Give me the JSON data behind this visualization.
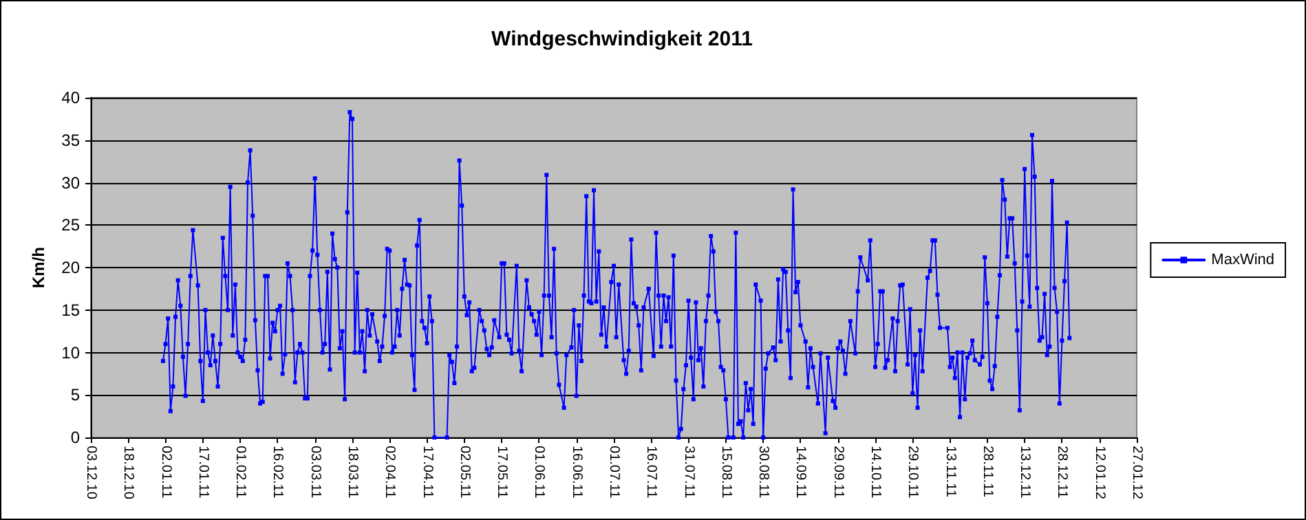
{
  "chart_data": {
    "type": "line",
    "title": "Windgeschwindigkeit 2011",
    "ylabel": "Km/h",
    "x": [
      "2011-01-01",
      "2011-01-02",
      "2011-01-03",
      "2011-01-04",
      "2011-01-05",
      "2011-01-06",
      "2011-01-07",
      "2011-01-08",
      "2011-01-09",
      "2011-01-10",
      "2011-01-11",
      "2011-01-12",
      "2011-01-13",
      "2011-01-15",
      "2011-01-16",
      "2011-01-17",
      "2011-01-18",
      "2011-01-19",
      "2011-01-20",
      "2011-01-21",
      "2011-01-22",
      "2011-01-23",
      "2011-01-24",
      "2011-01-25",
      "2011-01-26",
      "2011-01-27",
      "2011-01-28",
      "2011-01-29",
      "2011-01-30",
      "2011-01-31",
      "2011-02-01",
      "2011-02-02",
      "2011-02-03",
      "2011-02-04",
      "2011-02-05",
      "2011-02-06",
      "2011-02-07",
      "2011-02-08",
      "2011-02-09",
      "2011-02-10",
      "2011-02-11",
      "2011-02-12",
      "2011-02-13",
      "2011-02-14",
      "2011-02-15",
      "2011-02-16",
      "2011-02-17",
      "2011-02-18",
      "2011-02-19",
      "2011-02-20",
      "2011-02-21",
      "2011-02-22",
      "2011-02-23",
      "2011-02-24",
      "2011-02-25",
      "2011-02-26",
      "2011-02-27",
      "2011-02-28",
      "2011-03-01",
      "2011-03-02",
      "2011-03-03",
      "2011-03-04",
      "2011-03-05",
      "2011-03-06",
      "2011-03-07",
      "2011-03-08",
      "2011-03-09",
      "2011-03-10",
      "2011-03-11",
      "2011-03-12",
      "2011-03-13",
      "2011-03-14",
      "2011-03-15",
      "2011-03-16",
      "2011-03-17",
      "2011-03-18",
      "2011-03-19",
      "2011-03-20",
      "2011-03-21",
      "2011-03-22",
      "2011-03-23",
      "2011-03-24",
      "2011-03-25",
      "2011-03-26",
      "2011-03-28",
      "2011-03-29",
      "2011-03-30",
      "2011-03-31",
      "2011-04-01",
      "2011-04-02",
      "2011-04-03",
      "2011-04-04",
      "2011-04-05",
      "2011-04-06",
      "2011-04-07",
      "2011-04-08",
      "2011-04-09",
      "2011-04-10",
      "2011-04-11",
      "2011-04-12",
      "2011-04-13",
      "2011-04-14",
      "2011-04-15",
      "2011-04-16",
      "2011-04-17",
      "2011-04-18",
      "2011-04-19",
      "2011-04-20",
      "2011-04-25",
      "2011-04-26",
      "2011-04-27",
      "2011-04-28",
      "2011-04-29",
      "2011-04-30",
      "2011-05-01",
      "2011-05-02",
      "2011-05-03",
      "2011-05-04",
      "2011-05-05",
      "2011-05-06",
      "2011-05-08",
      "2011-05-09",
      "2011-05-10",
      "2011-05-11",
      "2011-05-12",
      "2011-05-13",
      "2011-05-14",
      "2011-05-16",
      "2011-05-17",
      "2011-05-18",
      "2011-05-19",
      "2011-05-20",
      "2011-05-21",
      "2011-05-23",
      "2011-05-24",
      "2011-05-25",
      "2011-05-27",
      "2011-05-28",
      "2011-05-29",
      "2011-05-30",
      "2011-05-31",
      "2011-06-01",
      "2011-06-02",
      "2011-06-03",
      "2011-06-04",
      "2011-06-05",
      "2011-06-06",
      "2011-06-07",
      "2011-06-08",
      "2011-06-09",
      "2011-06-11",
      "2011-06-12",
      "2011-06-14",
      "2011-06-15",
      "2011-06-16",
      "2011-06-17",
      "2011-06-18",
      "2011-06-19",
      "2011-06-20",
      "2011-06-21",
      "2011-06-22",
      "2011-06-23",
      "2011-06-24",
      "2011-06-25",
      "2011-06-26",
      "2011-06-27",
      "2011-06-28",
      "2011-06-30",
      "2011-07-01",
      "2011-07-02",
      "2011-07-03",
      "2011-07-05",
      "2011-07-06",
      "2011-07-07",
      "2011-07-08",
      "2011-07-09",
      "2011-07-10",
      "2011-07-11",
      "2011-07-12",
      "2011-07-13",
      "2011-07-15",
      "2011-07-17",
      "2011-07-18",
      "2011-07-19",
      "2011-07-20",
      "2011-07-21",
      "2011-07-22",
      "2011-07-23",
      "2011-07-24",
      "2011-07-25",
      "2011-07-26",
      "2011-07-27",
      "2011-07-28",
      "2011-07-29",
      "2011-07-30",
      "2011-07-31",
      "2011-08-01",
      "2011-08-02",
      "2011-08-03",
      "2011-08-04",
      "2011-08-05",
      "2011-08-06",
      "2011-08-07",
      "2011-08-08",
      "2011-08-09",
      "2011-08-10",
      "2011-08-11",
      "2011-08-12",
      "2011-08-13",
      "2011-08-14",
      "2011-08-15",
      "2011-08-16",
      "2011-08-18",
      "2011-08-19",
      "2011-08-20",
      "2011-08-21",
      "2011-08-22",
      "2011-08-23",
      "2011-08-24",
      "2011-08-25",
      "2011-08-26",
      "2011-08-27",
      "2011-08-29",
      "2011-08-30",
      "2011-08-31",
      "2011-09-01",
      "2011-09-03",
      "2011-09-04",
      "2011-09-05",
      "2011-09-06",
      "2011-09-07",
      "2011-09-08",
      "2011-09-09",
      "2011-09-10",
      "2011-09-11",
      "2011-09-12",
      "2011-09-13",
      "2011-09-14",
      "2011-09-16",
      "2011-09-17",
      "2011-09-18",
      "2011-09-19",
      "2011-09-21",
      "2011-09-22",
      "2011-09-24",
      "2011-09-25",
      "2011-09-27",
      "2011-09-28",
      "2011-09-29",
      "2011-09-30",
      "2011-10-01",
      "2011-10-02",
      "2011-10-04",
      "2011-10-06",
      "2011-10-07",
      "2011-10-08",
      "2011-10-11",
      "2011-10-12",
      "2011-10-14",
      "2011-10-15",
      "2011-10-16",
      "2011-10-17",
      "2011-10-18",
      "2011-10-19",
      "2011-10-21",
      "2011-10-22",
      "2011-10-23",
      "2011-10-24",
      "2011-10-25",
      "2011-10-27",
      "2011-10-28",
      "2011-10-29",
      "2011-10-30",
      "2011-10-31",
      "2011-11-01",
      "2011-11-02",
      "2011-11-04",
      "2011-11-05",
      "2011-11-06",
      "2011-11-07",
      "2011-11-08",
      "2011-11-09",
      "2011-11-12",
      "2011-11-13",
      "2011-11-14",
      "2011-11-15",
      "2011-11-16",
      "2011-11-17",
      "2011-11-18",
      "2011-11-19",
      "2011-11-20",
      "2011-11-21",
      "2011-11-22",
      "2011-11-23",
      "2011-11-25",
      "2011-11-26",
      "2011-11-27",
      "2011-11-28",
      "2011-11-29",
      "2011-11-30",
      "2011-12-01",
      "2011-12-02",
      "2011-12-03",
      "2011-12-04",
      "2011-12-05",
      "2011-12-06",
      "2011-12-07",
      "2011-12-08",
      "2011-12-09",
      "2011-12-10",
      "2011-12-11",
      "2011-12-12",
      "2011-12-13",
      "2011-12-14",
      "2011-12-15",
      "2011-12-16",
      "2011-12-17",
      "2011-12-18",
      "2011-12-19",
      "2011-12-20",
      "2011-12-21",
      "2011-12-22",
      "2011-12-23",
      "2011-12-24",
      "2011-12-25",
      "2011-12-26",
      "2011-12-27",
      "2011-12-28",
      "2011-12-29",
      "2011-12-30",
      "2011-12-31"
    ],
    "series": [
      {
        "name": "MaxWind",
        "color": "#0000ff",
        "values": [
          9,
          11,
          14,
          3.1,
          6,
          14.2,
          18.5,
          15.5,
          9.5,
          4.9,
          11,
          19,
          24.4,
          17.9,
          9,
          4.3,
          15,
          10,
          8.5,
          12,
          9,
          6,
          11,
          23.5,
          19,
          15,
          29.5,
          12,
          18,
          10,
          9.5,
          9,
          11.5,
          30,
          33.8,
          26.1,
          13.8,
          7.9,
          4,
          4.2,
          19,
          19,
          9.3,
          13.5,
          12.5,
          15,
          15.5,
          7.5,
          9.8,
          20.5,
          19,
          15,
          6.5,
          10,
          11,
          10,
          4.6,
          4.6,
          19,
          22,
          30.5,
          21.5,
          15,
          10,
          11,
          19.5,
          8,
          24,
          21,
          20,
          10.5,
          12.5,
          4.5,
          26.5,
          38.3,
          37.5,
          10,
          19.4,
          10,
          12.5,
          7.8,
          15,
          12,
          14.5,
          11.3,
          9,
          10.7,
          14.3,
          22.2,
          22,
          10,
          10.7,
          15,
          12,
          17.5,
          20.9,
          18,
          17.9,
          9.7,
          5.6,
          22.6,
          25.6,
          13.7,
          12.9,
          11.1,
          16.6,
          13.7,
          0,
          0,
          9.7,
          8.9,
          6.4,
          10.7,
          32.6,
          27.3,
          16.6,
          14.4,
          15.9,
          7.8,
          8.2,
          15,
          13.7,
          12.6,
          10.4,
          9.7,
          10.6,
          13.8,
          11.8,
          20.5,
          20.5,
          12.1,
          11.5,
          9.9,
          20.2,
          10.2,
          7.8,
          18.5,
          15.3,
          14.5,
          13.7,
          12.1,
          14.8,
          9.7,
          16.7,
          30.9,
          16.7,
          11.8,
          22.2,
          9.9,
          6.2,
          3.5,
          9.7,
          10.6,
          15,
          4.9,
          13.2,
          9,
          16.7,
          28.4,
          16,
          15.8,
          29.1,
          16,
          21.9,
          12.1,
          15.3,
          10.7,
          18.3,
          20.2,
          11.8,
          18,
          9.1,
          7.5,
          10.2,
          23.3,
          15.8,
          15.4,
          13.2,
          7.9,
          15.3,
          17.5,
          9.6,
          24.1,
          16.7,
          10.7,
          16.7,
          13.7,
          16.5,
          10.7,
          21.4,
          6.7,
          0,
          1,
          5.7,
          8.5,
          16.1,
          9.4,
          4.5,
          15.9,
          9.1,
          10.5,
          6,
          13.7,
          16.7,
          23.7,
          21.9,
          14.8,
          13.7,
          8.3,
          7.9,
          4.5,
          0,
          0,
          24.1,
          1.6,
          1.9,
          0,
          6.4,
          3.2,
          5.7,
          1.6,
          18,
          16.1,
          0,
          8.1,
          9.9,
          10.6,
          9.1,
          18.6,
          11.3,
          19.8,
          19.5,
          12.6,
          7,
          29.2,
          17.1,
          18.3,
          13.2,
          11.3,
          5.9,
          10.5,
          8.3,
          4,
          9.9,
          0.5,
          9.4,
          4.3,
          3.5,
          10.5,
          11.3,
          10.2,
          7.5,
          13.7,
          9.9,
          17.2,
          21.2,
          18.5,
          23.2,
          8.3,
          11,
          17.2,
          17.2,
          8.2,
          9.1,
          14,
          7.8,
          13.7,
          17.9,
          18,
          8.6,
          15.1,
          5.2,
          9.7,
          3.5,
          12.6,
          7.8,
          18.8,
          19.6,
          23.2,
          23.2,
          16.8,
          12.9,
          12.9,
          8.3,
          9.4,
          7,
          10,
          2.4,
          10,
          4.5,
          9.4,
          9.9,
          11.4,
          9.1,
          8.6,
          9.5,
          21.2,
          15.8,
          6.7,
          5.7,
          8.4,
          14.2,
          19.1,
          30.3,
          28,
          21.3,
          25.8,
          25.8,
          20.5,
          12.6,
          3.2,
          16,
          31.6,
          21.4,
          15.4,
          35.6,
          30.7,
          17.6,
          11.4,
          11.8,
          16.9,
          9.7,
          10.7,
          30.2,
          17.6,
          14.8,
          4,
          11.4,
          18.4,
          25.3,
          11.7
        ]
      }
    ],
    "xlim": [
      "2010-12-03",
      "2012-01-27"
    ],
    "xticks": [
      {
        "value": "2010-12-03",
        "label": "03.12.10"
      },
      {
        "value": "2010-12-18",
        "label": "18.12.10"
      },
      {
        "value": "2011-01-02",
        "label": "02.01.11"
      },
      {
        "value": "2011-01-17",
        "label": "17.01.11"
      },
      {
        "value": "2011-02-01",
        "label": "01.02.11"
      },
      {
        "value": "2011-02-16",
        "label": "16.02.11"
      },
      {
        "value": "2011-03-03",
        "label": "03.03.11"
      },
      {
        "value": "2011-03-18",
        "label": "18.03.11"
      },
      {
        "value": "2011-04-02",
        "label": "02.04.11"
      },
      {
        "value": "2011-04-17",
        "label": "17.04.11"
      },
      {
        "value": "2011-05-02",
        "label": "02.05.11"
      },
      {
        "value": "2011-05-17",
        "label": "17.05.11"
      },
      {
        "value": "2011-06-01",
        "label": "01.06.11"
      },
      {
        "value": "2011-06-16",
        "label": "16.06.11"
      },
      {
        "value": "2011-07-01",
        "label": "01.07.11"
      },
      {
        "value": "2011-07-16",
        "label": "16.07.11"
      },
      {
        "value": "2011-07-31",
        "label": "31.07.11"
      },
      {
        "value": "2011-08-15",
        "label": "15.08.11"
      },
      {
        "value": "2011-08-30",
        "label": "30.08.11"
      },
      {
        "value": "2011-09-14",
        "label": "14.09.11"
      },
      {
        "value": "2011-09-29",
        "label": "29.09.11"
      },
      {
        "value": "2011-10-14",
        "label": "14.10.11"
      },
      {
        "value": "2011-10-29",
        "label": "29.10.11"
      },
      {
        "value": "2011-11-13",
        "label": "13.11.11"
      },
      {
        "value": "2011-11-28",
        "label": "28.11.11"
      },
      {
        "value": "2011-12-13",
        "label": "13.12.11"
      },
      {
        "value": "2011-12-28",
        "label": "28.12.11"
      },
      {
        "value": "2012-01-12",
        "label": "12.01.12"
      },
      {
        "value": "2012-01-27",
        "label": "27.01.12"
      }
    ],
    "ylim": [
      0,
      40
    ],
    "yticks": [
      0,
      5,
      10,
      15,
      20,
      25,
      30,
      35,
      40
    ],
    "grid": "y",
    "legend": "right",
    "marker": "square",
    "line_style": "solid"
  }
}
